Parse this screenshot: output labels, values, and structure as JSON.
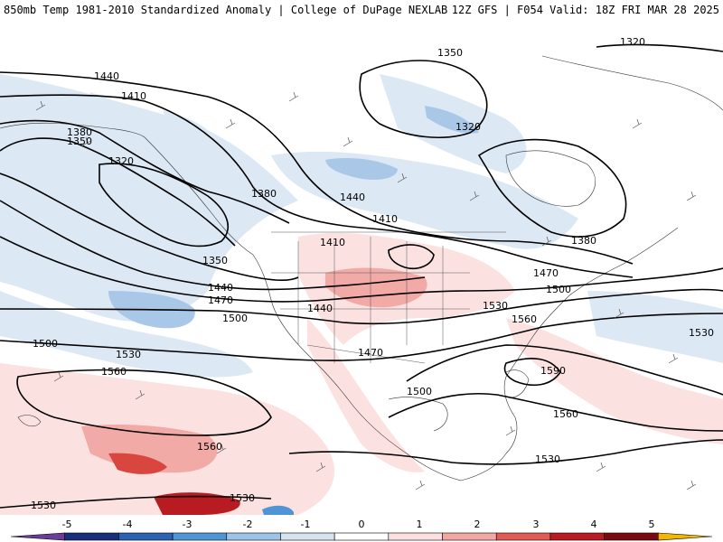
{
  "header": {
    "title_left": "850mb Temp 1981-2010 Standardized Anomaly | College of DuPage NEXLAB",
    "title_right": "12Z GFS | F054 Valid: 18Z FRI MAR 28 2025"
  },
  "colorbar": {
    "ticks": [
      "-5",
      "-4",
      "-3",
      "-2",
      "-1",
      "0",
      "1",
      "2",
      "3",
      "4",
      "5"
    ],
    "colors": [
      "#6a3d9a",
      "#1a2f7a",
      "#2c62b0",
      "#4f94d4",
      "#9fc3e6",
      "#d6e4f2",
      "#ffffff",
      "#fbe0df",
      "#f2a7a3",
      "#e05b55",
      "#b81c22",
      "#7a0a10",
      "#f2b600"
    ]
  },
  "contours": {
    "labels": [
      "1440",
      "1410",
      "1380",
      "1350",
      "1320",
      "1350",
      "1320",
      "1320",
      "1380",
      "1440",
      "1410",
      "1410",
      "1350",
      "1440",
      "1470",
      "1500",
      "1440",
      "1470",
      "1500",
      "1530",
      "1380",
      "1470",
      "1500",
      "1560",
      "1530",
      "1590",
      "1500",
      "1530",
      "1560",
      "1560",
      "1530",
      "1560",
      "1530",
      "1530"
    ]
  }
}
